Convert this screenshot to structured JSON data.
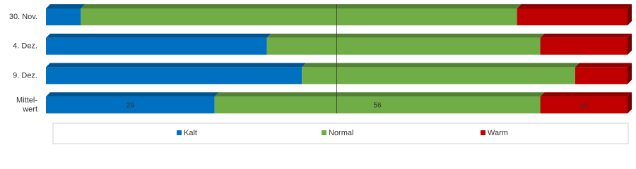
{
  "chart_data": {
    "type": "stacked_bar_horizontal_3d",
    "categories": [
      "30. Nov.",
      "4. Dez.",
      "9. Dez.",
      "Mittel-\nwert"
    ],
    "series": [
      {
        "name": "Kalt",
        "color": "#0070c0",
        "values": [
          6,
          38,
          44,
          29
        ]
      },
      {
        "name": "Normal",
        "color": "#70ad47",
        "values": [
          75,
          47,
          47,
          56
        ]
      },
      {
        "name": "Warm",
        "color": "#c00000",
        "values": [
          19,
          15,
          9,
          15
        ]
      }
    ],
    "xlim": [
      0,
      100
    ],
    "reference_line": 50,
    "data_label_category": 3,
    "legend": "bottom"
  }
}
